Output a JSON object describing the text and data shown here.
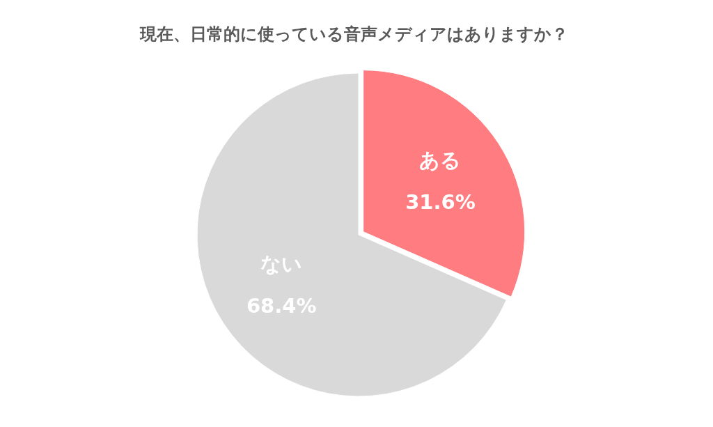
{
  "chart_data": {
    "type": "pie",
    "title": "現在、日常的に使っている音声メディアはありますか？",
    "categories": [
      "ある",
      "ない"
    ],
    "values": [
      31.6,
      68.4
    ],
    "colors": [
      "#ff7c80",
      "#d9d9d9"
    ],
    "value_labels": [
      "31.6%",
      "68.4%"
    ]
  }
}
